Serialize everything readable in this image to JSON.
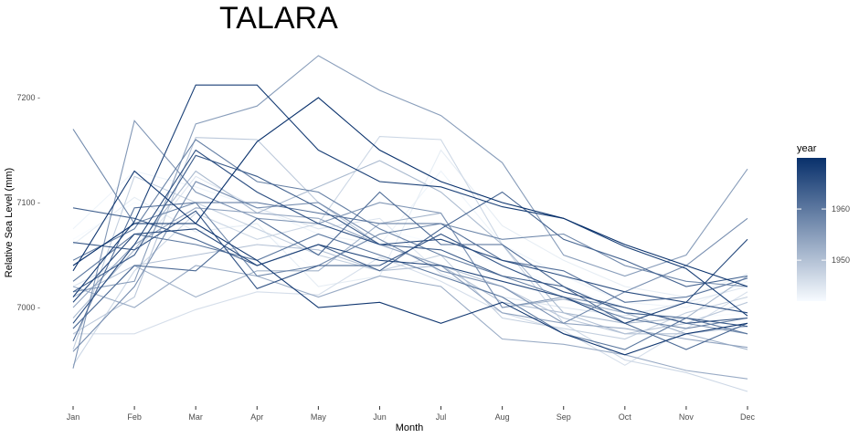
{
  "chart_data": {
    "type": "line",
    "title": "TALARA",
    "xlabel": "Month",
    "ylabel": "Relative Sea Level (mm)",
    "categories": [
      "Jan",
      "Feb",
      "Mar",
      "Apr",
      "May",
      "Jun",
      "Jul",
      "Aug",
      "Sep",
      "Oct",
      "Nov",
      "Dec"
    ],
    "y_ticks": [
      7000,
      7100,
      7200
    ],
    "y_tick_labels": [
      "7000 -",
      "7100 -",
      "7200 -"
    ],
    "ylim": [
      6910,
      7250
    ],
    "grid": false,
    "legend": {
      "title": "year",
      "position": "right",
      "type": "colorbar",
      "range": [
        1942,
        1970
      ],
      "ticks": [
        1950,
        1960
      ],
      "low_color": "#f7fbff",
      "high_color": "#08306b"
    },
    "series": [
      {
        "year": 1970,
        "values": [
          7040,
          7080,
          7080,
          7158,
          7200,
          7150,
          7120,
          7100,
          7085,
          7060,
          7040,
          7020
        ]
      },
      {
        "year": 1969,
        "values": [
          7035,
          7130,
          7080,
          7045,
          7000,
          7005,
          6985,
          7005,
          6975,
          6955,
          6975,
          6985
        ]
      },
      {
        "year": 1968,
        "values": [
          7010,
          7082,
          7212,
          7212,
          7150,
          7120,
          7115,
          7096,
          7085,
          7058,
          7037,
          6992
        ]
      },
      {
        "year": 1967,
        "values": [
          7005,
          7070,
          7075,
          7040,
          7060,
          7045,
          7040,
          7025,
          7010,
          6985,
          7005,
          7065
        ]
      },
      {
        "year": 1966,
        "values": [
          6985,
          7060,
          7150,
          7110,
          7080,
          7060,
          7065,
          7045,
          7030,
          7015,
          7005,
          6995
        ]
      },
      {
        "year": 1965,
        "values": [
          7062,
          7055,
          7092,
          7018,
          7040,
          7040,
          7070,
          7040,
          7015,
          7000,
          6985,
          6990
        ]
      },
      {
        "year": 1964,
        "values": [
          7015,
          7050,
          7145,
          7125,
          7095,
          7060,
          7055,
          7030,
          7020,
          6995,
          6990,
          6982
        ]
      },
      {
        "year": 1963,
        "values": [
          7095,
          7085,
          7065,
          7040,
          7060,
          7035,
          7075,
          7110,
          7065,
          7045,
          7020,
          7030
        ]
      },
      {
        "year": 1962,
        "values": [
          6980,
          7040,
          7035,
          7085,
          7050,
          7110,
          7060,
          7060,
          7020,
          6985,
          6960,
          6985
        ]
      },
      {
        "year": 1961,
        "values": [
          6968,
          7095,
          7100,
          7100,
          7090,
          7080,
          7080,
          7045,
          7035,
          7005,
          7010,
          7028
        ]
      },
      {
        "year": 1960,
        "values": [
          7025,
          7070,
          7060,
          7045,
          7070,
          7050,
          7030,
          7010,
          6975,
          6960,
          6990,
          6975
        ]
      },
      {
        "year": 1959,
        "values": [
          7045,
          7075,
          7160,
          7120,
          7110,
          7075,
          7050,
          7030,
          7010,
          6990,
          6980,
          6990
        ]
      },
      {
        "year": 1958,
        "values": [
          7170,
          7080,
          7100,
          7030,
          7040,
          7070,
          7080,
          7065,
          7070,
          7040,
          7025,
          7020
        ]
      },
      {
        "year": 1957,
        "values": [
          6958,
          7020,
          7120,
          7095,
          7100,
          7065,
          7035,
          7020,
          6985,
          7015,
          7040,
          7085
        ]
      },
      {
        "year": 1956,
        "values": [
          6942,
          7178,
          7110,
          7085,
          7080,
          7100,
          7090,
          7000,
          7010,
          7000,
          6985,
          6975
        ]
      },
      {
        "year": 1955,
        "values": [
          7015,
          7025,
          7175,
          7192,
          7240,
          7207,
          7183,
          7138,
          7050,
          7030,
          7050,
          7132
        ]
      },
      {
        "year": 1954,
        "values": [
          7000,
          7060,
          7095,
          7090,
          7085,
          7060,
          7040,
          6995,
          6985,
          6980,
          6970,
          6962
        ]
      },
      {
        "year": 1953,
        "values": [
          7020,
          7000,
          7040,
          7030,
          7010,
          7030,
          7020,
          6970,
          6965,
          6955,
          6940,
          6932
        ]
      },
      {
        "year": 1952,
        "values": [
          6980,
          7040,
          7010,
          7035,
          7035,
          7080,
          7090,
          7000,
          7008,
          6995,
          6975,
          6960
        ]
      },
      {
        "year": 1951,
        "values": [
          6990,
          7055,
          7130,
          7090,
          7115,
          7140,
          7110,
          7060,
          6995,
          6985,
          6990,
          7030
        ]
      },
      {
        "year": 1950,
        "values": [
          7010,
          7040,
          7050,
          7060,
          7055,
          7035,
          7040,
          7005,
          6995,
          6975,
          6975,
          6982
        ]
      },
      {
        "year": 1949,
        "values": [
          6975,
          7010,
          7162,
          7160,
          7100,
          7060,
          7040,
          7020,
          6990,
          6975,
          6985,
          7005
        ]
      },
      {
        "year": 1948,
        "values": [
          6960,
          7125,
          7100,
          7075,
          7050,
          7035,
          7050,
          6990,
          6980,
          6970,
          6995,
          7010
        ]
      },
      {
        "year": 1947,
        "values": [
          6945,
          7035,
          7090,
          7065,
          7080,
          7163,
          7160,
          7060,
          6985,
          6950,
          6938,
          6920
        ]
      },
      {
        "year": 1946,
        "values": [
          6975,
          6975,
          6998,
          7015,
          7012,
          7048,
          7025,
          6995,
          6978,
          6945,
          6980,
          7015
        ]
      },
      {
        "year": 1945,
        "values": [
          7020,
          7050,
          7125,
          7095,
          7075,
          7085,
          7032,
          7010,
          7000,
          6992,
          7005,
          7020
        ]
      },
      {
        "year": 1944,
        "values": [
          7060,
          7105,
          7072,
          7080,
          7020,
          7030,
          7150,
          7078,
          7045,
          7020,
          7010,
          7032
        ]
      },
      {
        "year": 1943,
        "values": [
          7075,
          7130,
          7115,
          7095,
          7070,
          7060,
          7130,
          7060,
          7030,
          7005,
          7000,
          7025
        ]
      },
      {
        "year": 1942,
        "values": [
          7065,
          7100,
          7082,
          7075,
          7035,
          7075,
          7060,
          7040,
          7020,
          7000,
          6990,
          6995
        ]
      }
    ]
  }
}
